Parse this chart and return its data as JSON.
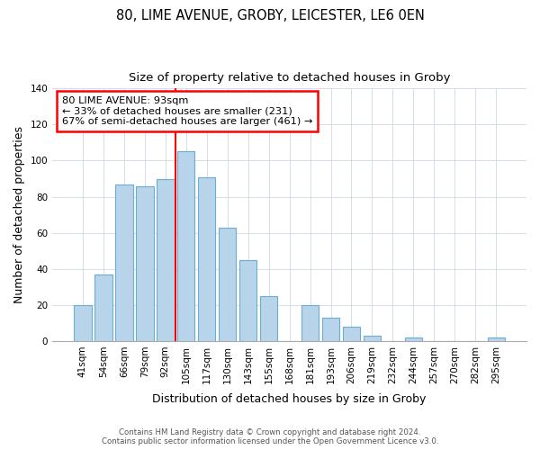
{
  "title": "80, LIME AVENUE, GROBY, LEICESTER, LE6 0EN",
  "subtitle": "Size of property relative to detached houses in Groby",
  "xlabel": "Distribution of detached houses by size in Groby",
  "ylabel": "Number of detached properties",
  "categories": [
    "41sqm",
    "54sqm",
    "66sqm",
    "79sqm",
    "92sqm",
    "105sqm",
    "117sqm",
    "130sqm",
    "143sqm",
    "155sqm",
    "168sqm",
    "181sqm",
    "193sqm",
    "206sqm",
    "219sqm",
    "232sqm",
    "244sqm",
    "257sqm",
    "270sqm",
    "282sqm",
    "295sqm"
  ],
  "values": [
    20,
    37,
    87,
    86,
    90,
    105,
    91,
    63,
    45,
    25,
    0,
    20,
    13,
    8,
    3,
    0,
    2,
    0,
    0,
    0,
    2
  ],
  "bar_color": "#b8d4ea",
  "bar_edge_color": "#6aaed6",
  "vline_x_index": 4,
  "vline_color": "red",
  "annotation_title": "80 LIME AVENUE: 93sqm",
  "annotation_line1": "← 33% of detached houses are smaller (231)",
  "annotation_line2": "67% of semi-detached houses are larger (461) →",
  "annotation_box_color": "white",
  "annotation_box_edge_color": "red",
  "ylim": [
    0,
    140
  ],
  "yticks": [
    0,
    20,
    40,
    60,
    80,
    100,
    120,
    140
  ],
  "footer1": "Contains HM Land Registry data © Crown copyright and database right 2024.",
  "footer2": "Contains public sector information licensed under the Open Government Licence v3.0.",
  "title_fontsize": 10.5,
  "subtitle_fontsize": 9.5,
  "axis_label_fontsize": 9,
  "tick_fontsize": 7.5,
  "bar_width": 0.85
}
